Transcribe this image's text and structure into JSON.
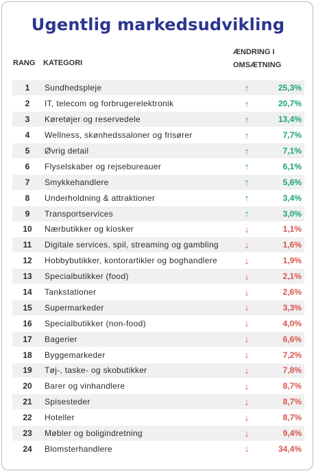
{
  "title": "Ugentlig markedsudvikling",
  "headers": {
    "rank": "RANG",
    "category": "KATEGORI",
    "change_line1": "ÆNDRING I",
    "change_line2": "OMSÆTNING"
  },
  "colors": {
    "up": "#1aa37a",
    "down": "#d9534f",
    "title": "#2b3590"
  },
  "rows": [
    {
      "rank": "1",
      "category": "Sundhedspleje",
      "direction": "up",
      "value": "25,3%"
    },
    {
      "rank": "2",
      "category": "IT, telecom og forbrugerelektronik",
      "direction": "up",
      "value": "20,7%"
    },
    {
      "rank": "3",
      "category": "Køretøjer og reservedele",
      "direction": "up",
      "value": "13,4%"
    },
    {
      "rank": "4",
      "category": "Wellness, skønhedssaloner og frisører",
      "direction": "up",
      "value": "7,7%"
    },
    {
      "rank": "5",
      "category": "Øvrig detail",
      "direction": "up",
      "value": "7,1%"
    },
    {
      "rank": "6",
      "category": "Flyselskaber og rejsebureauer",
      "direction": "up",
      "value": "6,1%"
    },
    {
      "rank": "7",
      "category": "Smykkehandlere",
      "direction": "up",
      "value": "5,6%"
    },
    {
      "rank": "8",
      "category": "Underholdning & attraktioner",
      "direction": "up",
      "value": "3,4%"
    },
    {
      "rank": "9",
      "category": "Transportservices",
      "direction": "up",
      "value": "3,0%"
    },
    {
      "rank": "10",
      "category": "Nærbutikker og kiosker",
      "direction": "down",
      "value": "1,1%"
    },
    {
      "rank": "11",
      "category": "Digitale services, spil, streaming og gambling",
      "direction": "down",
      "value": "1,6%"
    },
    {
      "rank": "12",
      "category": "Hobbybutikker, kontorartikler og boghandlere",
      "direction": "down",
      "value": "1,9%"
    },
    {
      "rank": "13",
      "category": "Specialbutikker (food)",
      "direction": "down",
      "value": "2,1%"
    },
    {
      "rank": "14",
      "category": "Tankstationer",
      "direction": "down",
      "value": "2,6%"
    },
    {
      "rank": "15",
      "category": "Supermarkeder",
      "direction": "down",
      "value": "3,3%"
    },
    {
      "rank": "16",
      "category": "Specialbutikker (non-food)",
      "direction": "down",
      "value": "4,0%"
    },
    {
      "rank": "17",
      "category": "Bagerier",
      "direction": "down",
      "value": "6,6%"
    },
    {
      "rank": "18",
      "category": "Byggemarkeder",
      "direction": "down",
      "value": "7,2%"
    },
    {
      "rank": "19",
      "category": "Tøj-, taske- og skobutikker",
      "direction": "down",
      "value": "7,8%"
    },
    {
      "rank": "20",
      "category": "Barer og vinhandlere",
      "direction": "down",
      "value": "8,7%"
    },
    {
      "rank": "21",
      "category": "Spisesteder",
      "direction": "down",
      "value": "8,7%"
    },
    {
      "rank": "22",
      "category": "Hoteller",
      "direction": "down",
      "value": "8,7%"
    },
    {
      "rank": "23",
      "category": "Møbler og boligindretning",
      "direction": "down",
      "value": "9,4%"
    },
    {
      "rank": "24",
      "category": "Blomsterhandlere",
      "direction": "down",
      "value": "34,4%"
    }
  ]
}
